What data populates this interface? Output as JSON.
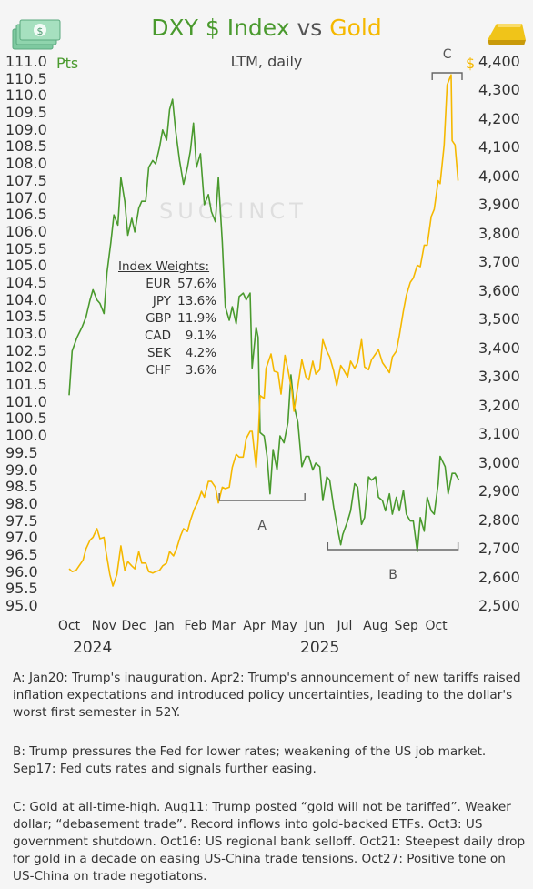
{
  "header": {
    "title_part1": "DXY $ Index",
    "title_vs": "vs",
    "title_part2": "Gold",
    "subtitle": "LTM, daily",
    "unit_left": "Pts",
    "unit_right": "$",
    "watermark": "SUCCINCT"
  },
  "chart_data": {
    "type": "line",
    "title": "DXY $ Index vs Gold",
    "subtitle": "LTM, daily",
    "x_range": [
      "2024-10-01",
      "2025-10-31"
    ],
    "x_ticks": [
      "Oct",
      "Nov",
      "Dec",
      "Jan",
      "Feb",
      "Mar",
      "Apr",
      "May",
      "Jun",
      "Jul",
      "Aug",
      "Sep",
      "Oct"
    ],
    "years": [
      "2024",
      "2025"
    ],
    "y_left": {
      "label": "Pts",
      "range": [
        95.0,
        111.0
      ],
      "ticks": [
        "111.0",
        "110.5",
        "110.0",
        "109.5",
        "109.0",
        "108.5",
        "108.0",
        "107.5",
        "107.0",
        "106.5",
        "106.0",
        "105.5",
        "105.0",
        "104.5",
        "104.0",
        "103.5",
        "103.0",
        "102.5",
        "102.0",
        "101.5",
        "101.0",
        "100.5",
        "100.0",
        "99.5",
        "99.0",
        "98.5",
        "98.0",
        "97.5",
        "97.0",
        "96.5",
        "96.0",
        "95.5",
        "95.0"
      ]
    },
    "y_right": {
      "label": "$",
      "range": [
        2500,
        4400
      ],
      "ticks": [
        "4,400",
        "4,300",
        "4,200",
        "4,100",
        "4,000",
        "3,900",
        "3,800",
        "3,700",
        "3,600",
        "3,500",
        "3,400",
        "3,300",
        "3,200",
        "3,100",
        "3,000",
        "2,900",
        "2,800",
        "2,700",
        "2,600",
        "2,500"
      ]
    },
    "series": [
      {
        "name": "DXY $ Index",
        "axis": "left",
        "color": "#4a9a2e",
        "points": [
          [
            "2024-10-01",
            101.2
          ],
          [
            "2024-10-04",
            102.5
          ],
          [
            "2024-10-09",
            102.9
          ],
          [
            "2024-10-14",
            103.2
          ],
          [
            "2024-10-18",
            103.5
          ],
          [
            "2024-10-22",
            104.0
          ],
          [
            "2024-10-25",
            104.3
          ],
          [
            "2024-10-29",
            104.0
          ],
          [
            "2024-11-01",
            103.9
          ],
          [
            "2024-11-05",
            103.6
          ],
          [
            "2024-11-08",
            104.8
          ],
          [
            "2024-11-12",
            105.7
          ],
          [
            "2024-11-15",
            106.5
          ],
          [
            "2024-11-19",
            106.2
          ],
          [
            "2024-11-22",
            107.6
          ],
          [
            "2024-11-26",
            106.9
          ],
          [
            "2024-11-29",
            105.9
          ],
          [
            "2024-12-03",
            106.4
          ],
          [
            "2024-12-06",
            106.0
          ],
          [
            "2024-12-10",
            106.7
          ],
          [
            "2024-12-13",
            106.9
          ],
          [
            "2024-12-17",
            106.9
          ],
          [
            "2024-12-20",
            107.9
          ],
          [
            "2024-12-24",
            108.1
          ],
          [
            "2024-12-27",
            108.0
          ],
          [
            "2024-12-31",
            108.5
          ],
          [
            "2025-01-03",
            109.0
          ],
          [
            "2025-01-07",
            108.7
          ],
          [
            "2025-01-10",
            109.6
          ],
          [
            "2025-01-13",
            109.9
          ],
          [
            "2025-01-16",
            109.0
          ],
          [
            "2025-01-20",
            108.1
          ],
          [
            "2025-01-24",
            107.4
          ],
          [
            "2025-01-28",
            107.9
          ],
          [
            "2025-01-31",
            108.4
          ],
          [
            "2025-02-03",
            109.2
          ],
          [
            "2025-02-06",
            107.9
          ],
          [
            "2025-02-10",
            108.3
          ],
          [
            "2025-02-14",
            106.8
          ],
          [
            "2025-02-18",
            107.1
          ],
          [
            "2025-02-21",
            106.6
          ],
          [
            "2025-02-25",
            106.3
          ],
          [
            "2025-02-28",
            107.6
          ],
          [
            "2025-03-04",
            105.7
          ],
          [
            "2025-03-07",
            103.8
          ],
          [
            "2025-03-11",
            103.4
          ],
          [
            "2025-03-14",
            103.8
          ],
          [
            "2025-03-18",
            103.3
          ],
          [
            "2025-03-21",
            104.1
          ],
          [
            "2025-03-25",
            104.2
          ],
          [
            "2025-03-28",
            104.0
          ],
          [
            "2025-04-01",
            104.2
          ],
          [
            "2025-04-03",
            102.0
          ],
          [
            "2025-04-07",
            103.2
          ],
          [
            "2025-04-09",
            102.9
          ],
          [
            "2025-04-11",
            100.1
          ],
          [
            "2025-04-15",
            100.0
          ],
          [
            "2025-04-18",
            99.4
          ],
          [
            "2025-04-21",
            98.3
          ],
          [
            "2025-04-24",
            99.6
          ],
          [
            "2025-04-28",
            99.0
          ],
          [
            "2025-05-01",
            100.0
          ],
          [
            "2025-05-05",
            99.8
          ],
          [
            "2025-05-09",
            100.4
          ],
          [
            "2025-05-12",
            101.8
          ],
          [
            "2025-05-15",
            100.9
          ],
          [
            "2025-05-19",
            100.4
          ],
          [
            "2025-05-23",
            99.1
          ],
          [
            "2025-05-27",
            99.4
          ],
          [
            "2025-05-30",
            99.4
          ],
          [
            "2025-06-03",
            99.0
          ],
          [
            "2025-06-06",
            99.2
          ],
          [
            "2025-06-10",
            99.1
          ],
          [
            "2025-06-13",
            98.1
          ],
          [
            "2025-06-17",
            98.8
          ],
          [
            "2025-06-20",
            98.7
          ],
          [
            "2025-06-24",
            97.9
          ],
          [
            "2025-06-27",
            97.4
          ],
          [
            "2025-07-01",
            96.8
          ],
          [
            "2025-07-03",
            97.1
          ],
          [
            "2025-07-08",
            97.5
          ],
          [
            "2025-07-11",
            97.8
          ],
          [
            "2025-07-15",
            98.6
          ],
          [
            "2025-07-18",
            98.5
          ],
          [
            "2025-07-22",
            97.4
          ],
          [
            "2025-07-25",
            97.6
          ],
          [
            "2025-07-29",
            98.8
          ],
          [
            "2025-08-01",
            98.7
          ],
          [
            "2025-08-05",
            98.8
          ],
          [
            "2025-08-08",
            98.2
          ],
          [
            "2025-08-12",
            98.1
          ],
          [
            "2025-08-15",
            97.8
          ],
          [
            "2025-08-19",
            98.3
          ],
          [
            "2025-08-22",
            97.7
          ],
          [
            "2025-08-26",
            98.2
          ],
          [
            "2025-08-29",
            97.8
          ],
          [
            "2025-09-02",
            98.4
          ],
          [
            "2025-09-05",
            97.7
          ],
          [
            "2025-09-09",
            97.5
          ],
          [
            "2025-09-12",
            97.5
          ],
          [
            "2025-09-16",
            96.6
          ],
          [
            "2025-09-19",
            97.6
          ],
          [
            "2025-09-23",
            97.2
          ],
          [
            "2025-09-26",
            98.2
          ],
          [
            "2025-09-30",
            97.8
          ],
          [
            "2025-10-03",
            97.7
          ],
          [
            "2025-10-07",
            98.6
          ],
          [
            "2025-10-09",
            99.4
          ],
          [
            "2025-10-14",
            99.1
          ],
          [
            "2025-10-17",
            98.3
          ],
          [
            "2025-10-21",
            98.9
          ],
          [
            "2025-10-24",
            98.9
          ],
          [
            "2025-10-28",
            98.7
          ]
        ]
      },
      {
        "name": "Gold",
        "axis": "right",
        "color": "#f5b800",
        "points": [
          [
            "2024-10-01",
            2630
          ],
          [
            "2024-10-04",
            2620
          ],
          [
            "2024-10-08",
            2625
          ],
          [
            "2024-10-11",
            2640
          ],
          [
            "2024-10-15",
            2660
          ],
          [
            "2024-10-18",
            2700
          ],
          [
            "2024-10-22",
            2730
          ],
          [
            "2024-10-25",
            2740
          ],
          [
            "2024-10-29",
            2770
          ],
          [
            "2024-11-01",
            2735
          ],
          [
            "2024-11-05",
            2740
          ],
          [
            "2024-11-07",
            2690
          ],
          [
            "2024-11-11",
            2610
          ],
          [
            "2024-11-14",
            2570
          ],
          [
            "2024-11-18",
            2610
          ],
          [
            "2024-11-22",
            2710
          ],
          [
            "2024-11-26",
            2625
          ],
          [
            "2024-11-29",
            2655
          ],
          [
            "2024-12-03",
            2640
          ],
          [
            "2024-12-06",
            2630
          ],
          [
            "2024-12-10",
            2690
          ],
          [
            "2024-12-13",
            2650
          ],
          [
            "2024-12-17",
            2650
          ],
          [
            "2024-12-20",
            2620
          ],
          [
            "2024-12-24",
            2615
          ],
          [
            "2024-12-27",
            2620
          ],
          [
            "2024-12-31",
            2625
          ],
          [
            "2025-01-03",
            2640
          ],
          [
            "2025-01-07",
            2650
          ],
          [
            "2025-01-10",
            2690
          ],
          [
            "2025-01-14",
            2675
          ],
          [
            "2025-01-17",
            2700
          ],
          [
            "2025-01-21",
            2745
          ],
          [
            "2025-01-24",
            2770
          ],
          [
            "2025-01-28",
            2760
          ],
          [
            "2025-01-31",
            2800
          ],
          [
            "2025-02-04",
            2840
          ],
          [
            "2025-02-07",
            2860
          ],
          [
            "2025-02-11",
            2900
          ],
          [
            "2025-02-14",
            2880
          ],
          [
            "2025-02-18",
            2935
          ],
          [
            "2025-02-21",
            2935
          ],
          [
            "2025-02-25",
            2915
          ],
          [
            "2025-02-28",
            2860
          ],
          [
            "2025-03-04",
            2915
          ],
          [
            "2025-03-07",
            2910
          ],
          [
            "2025-03-11",
            2915
          ],
          [
            "2025-03-14",
            2985
          ],
          [
            "2025-03-18",
            3030
          ],
          [
            "2025-03-21",
            3020
          ],
          [
            "2025-03-25",
            3020
          ],
          [
            "2025-03-28",
            3085
          ],
          [
            "2025-04-01",
            3110
          ],
          [
            "2025-04-03",
            3110
          ],
          [
            "2025-04-07",
            2985
          ],
          [
            "2025-04-09",
            3080
          ],
          [
            "2025-04-11",
            3235
          ],
          [
            "2025-04-15",
            3225
          ],
          [
            "2025-04-17",
            3330
          ],
          [
            "2025-04-22",
            3380
          ],
          [
            "2025-04-25",
            3320
          ],
          [
            "2025-04-29",
            3315
          ],
          [
            "2025-05-02",
            3240
          ],
          [
            "2025-05-06",
            3375
          ],
          [
            "2025-05-09",
            3325
          ],
          [
            "2025-05-13",
            3250
          ],
          [
            "2025-05-15",
            3180
          ],
          [
            "2025-05-20",
            3290
          ],
          [
            "2025-05-23",
            3360
          ],
          [
            "2025-05-27",
            3300
          ],
          [
            "2025-05-30",
            3290
          ],
          [
            "2025-06-03",
            3355
          ],
          [
            "2025-06-06",
            3310
          ],
          [
            "2025-06-10",
            3325
          ],
          [
            "2025-06-13",
            3430
          ],
          [
            "2025-06-17",
            3390
          ],
          [
            "2025-06-20",
            3370
          ],
          [
            "2025-06-24",
            3320
          ],
          [
            "2025-06-27",
            3270
          ],
          [
            "2025-07-01",
            3340
          ],
          [
            "2025-07-03",
            3330
          ],
          [
            "2025-07-08",
            3300
          ],
          [
            "2025-07-11",
            3355
          ],
          [
            "2025-07-15",
            3330
          ],
          [
            "2025-07-18",
            3350
          ],
          [
            "2025-07-22",
            3430
          ],
          [
            "2025-07-25",
            3335
          ],
          [
            "2025-07-29",
            3325
          ],
          [
            "2025-08-01",
            3360
          ],
          [
            "2025-08-05",
            3380
          ],
          [
            "2025-08-08",
            3395
          ],
          [
            "2025-08-12",
            3350
          ],
          [
            "2025-08-15",
            3335
          ],
          [
            "2025-08-19",
            3315
          ],
          [
            "2025-08-22",
            3370
          ],
          [
            "2025-08-26",
            3390
          ],
          [
            "2025-08-29",
            3445
          ],
          [
            "2025-09-02",
            3530
          ],
          [
            "2025-09-05",
            3585
          ],
          [
            "2025-09-09",
            3630
          ],
          [
            "2025-09-12",
            3645
          ],
          [
            "2025-09-16",
            3690
          ],
          [
            "2025-09-19",
            3685
          ],
          [
            "2025-09-23",
            3760
          ],
          [
            "2025-09-26",
            3760
          ],
          [
            "2025-09-30",
            3860
          ],
          [
            "2025-10-03",
            3885
          ],
          [
            "2025-10-07",
            3985
          ],
          [
            "2025-10-09",
            3975
          ],
          [
            "2025-10-13",
            4110
          ],
          [
            "2025-10-16",
            4320
          ],
          [
            "2025-10-20",
            4355
          ],
          [
            "2025-10-21",
            4125
          ],
          [
            "2025-10-24",
            4110
          ],
          [
            "2025-10-27",
            3985
          ]
        ]
      }
    ],
    "annotations": [
      {
        "label": "A",
        "from": "2025-03-01",
        "to": "2025-05-26",
        "side": "below"
      },
      {
        "label": "B",
        "from": "2025-06-18",
        "to": "2025-10-27",
        "side": "below"
      },
      {
        "label": "C",
        "from": "2025-10-01",
        "to": "2025-10-31",
        "side": "above"
      }
    ],
    "table": {
      "heading": "Index Weights:",
      "rows": [
        {
          "currency": "EUR",
          "weight": "57.6%"
        },
        {
          "currency": "JPY",
          "weight": "13.6%"
        },
        {
          "currency": "GBP",
          "weight": "11.9%"
        },
        {
          "currency": "CAD",
          "weight": "9.1%"
        },
        {
          "currency": "SEK",
          "weight": "4.2%"
        },
        {
          "currency": "CHF",
          "weight": "3.6%"
        }
      ]
    }
  },
  "notes": {
    "a": "A: Jan20: Trump's inauguration. Apr2: Trump's announcement of new tariffs raised inflation expectations and introduced policy uncertainties, leading to the dollar's worst first semester in 52Y.",
    "b": "B: Trump pressures the Fed for lower rates; weakening of the US job market. Sep17: Fed cuts rates and signals further easing.",
    "c": "C: Gold at all-time-high. Aug11: Trump posted “gold will not be tariffed”. Weaker dollar;  “debasement trade”. Record inflows into gold-backed ETFs. Oct3: US government shutdown. Oct16: US regional bank selloff. Oct21: Steepest daily drop for gold in a decade on easing US-China trade tensions. Oct27: Positive tone on US-China on trade negotiatons."
  },
  "icons": {
    "left": "dollar-bills-icon",
    "right": "gold-bar-icon"
  },
  "colors": {
    "dxy": "#4a9a2e",
    "gold": "#f5b800",
    "bracket": "#666666"
  }
}
